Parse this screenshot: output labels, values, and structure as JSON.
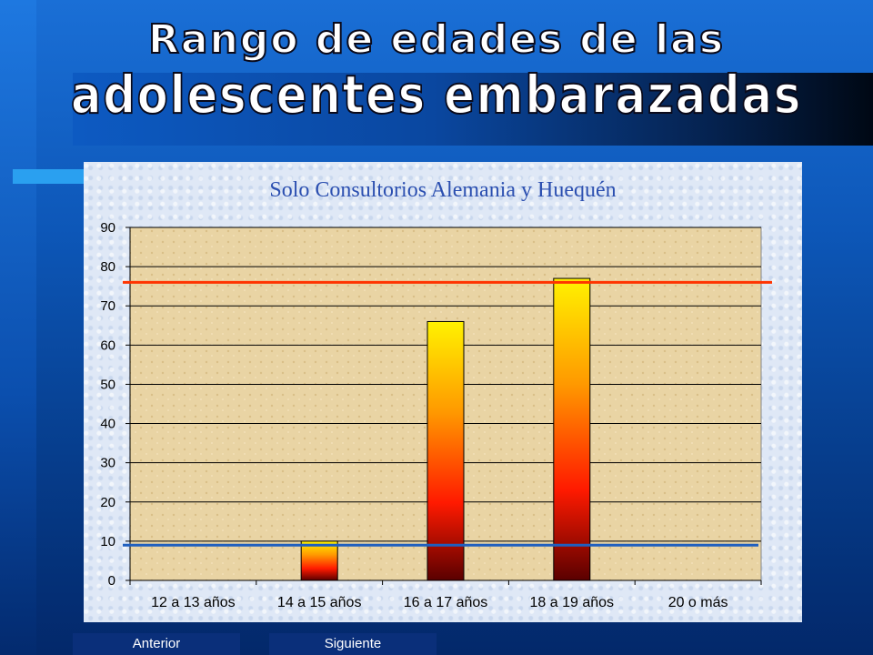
{
  "title_line1": "Rango de edades de las",
  "title_line2": "adolescentes embarazadas",
  "nav": {
    "prev_label": "Anterior",
    "next_label": "Siguiente"
  },
  "colors": {
    "upper_ref_line": "#ff3300",
    "lower_ref_line": "#1f5fbf",
    "chart_title": "#2b4fb0"
  },
  "chart_data": {
    "type": "bar",
    "title": "Solo Consultorios Alemania  y Huequén",
    "categories": [
      "12 a 13 años",
      "14 a 15 años",
      "16 a 17 años",
      "18 a 19 años",
      "20 o más"
    ],
    "values": [
      0,
      10,
      66,
      77,
      0
    ],
    "ylim": [
      0,
      90
    ],
    "yticks": [
      0,
      10,
      20,
      30,
      40,
      50,
      60,
      70,
      80,
      90
    ],
    "xlabel": "",
    "ylabel": "",
    "grid": true,
    "reference_lines": [
      76,
      9
    ]
  }
}
